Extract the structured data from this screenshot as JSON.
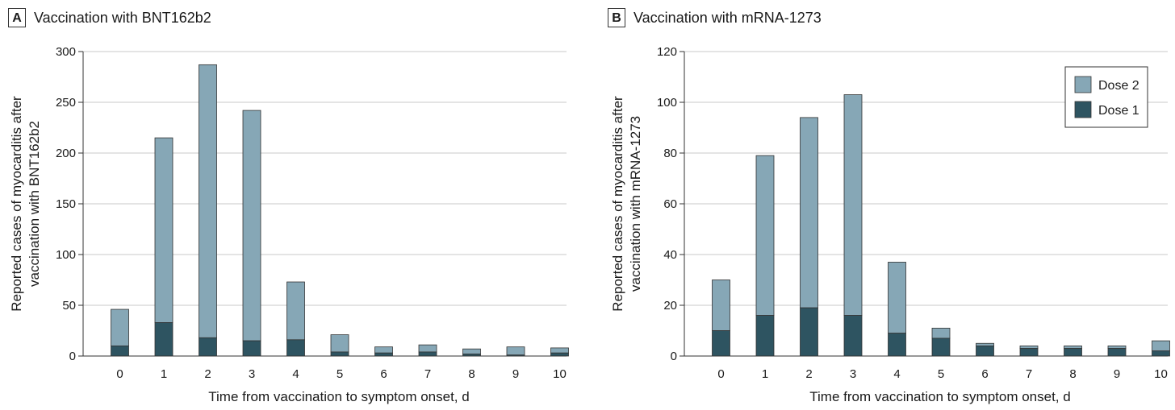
{
  "colors": {
    "dose2": "#86a7b6",
    "dose1": "#2e5461",
    "grid": "#c8c8c8",
    "axis": "#333333"
  },
  "chart_data": [
    {
      "type": "bar",
      "stacked": true,
      "panel_letter": "A",
      "title": "Vaccination with BNT162b2",
      "xlabel": "Time from vaccination to symptom onset, d",
      "ylabel_line1": "Reported cases of myocarditis after",
      "ylabel_line2": "vaccination with BNT162b2",
      "ylim": [
        0,
        300
      ],
      "yticks": [
        "0",
        "50",
        "100",
        "150",
        "200",
        "250",
        "300"
      ],
      "categories": [
        "0",
        "1",
        "2",
        "3",
        "4",
        "5",
        "6",
        "7",
        "8",
        "9",
        "10"
      ],
      "grid": true,
      "series": [
        {
          "name": "Dose 1",
          "values": [
            10,
            33,
            18,
            15,
            16,
            4,
            3,
            4,
            2,
            1,
            3
          ]
        },
        {
          "name": "Dose 2",
          "values": [
            36,
            182,
            269,
            227,
            57,
            17,
            6,
            7,
            5,
            8,
            5
          ]
        }
      ]
    },
    {
      "type": "bar",
      "stacked": true,
      "panel_letter": "B",
      "title": "Vaccination with mRNA-1273",
      "xlabel": "Time from vaccination to symptom onset, d",
      "ylabel_line1": "Reported cases of myocarditis after",
      "ylabel_line2": "vaccination with mRNA-1273",
      "ylim": [
        0,
        120
      ],
      "yticks": [
        "0",
        "20",
        "40",
        "60",
        "80",
        "100",
        "120"
      ],
      "categories": [
        "0",
        "1",
        "2",
        "3",
        "4",
        "5",
        "6",
        "7",
        "8",
        "9",
        "10"
      ],
      "grid": true,
      "legend_position": "top-right",
      "series": [
        {
          "name": "Dose 1",
          "values": [
            10,
            16,
            19,
            16,
            9,
            7,
            4,
            3,
            3,
            3,
            2
          ]
        },
        {
          "name": "Dose 2",
          "values": [
            20,
            63,
            75,
            87,
            28,
            4,
            1,
            1,
            1,
            1,
            4
          ]
        }
      ]
    }
  ]
}
